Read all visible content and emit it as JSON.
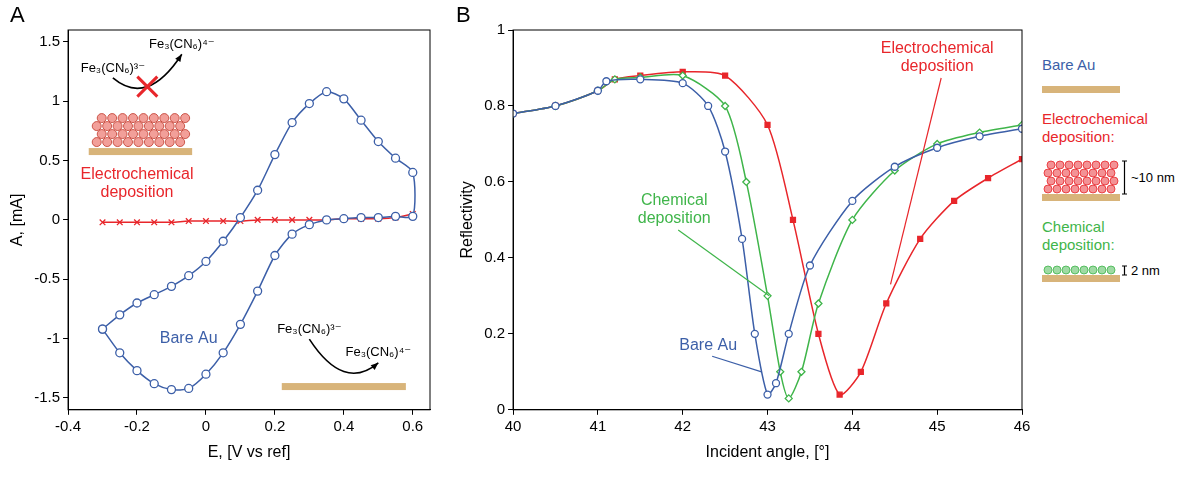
{
  "chart_data": [
    {
      "type": "line",
      "panel_label": "A",
      "x_label": "E, [V vs ref]",
      "y_label": "A, [mA]",
      "xlim": [
        -0.4,
        0.65
      ],
      "xticks": [
        -0.4,
        -0.2,
        0,
        0.2,
        0.4,
        0.6
      ],
      "ylim": [
        -1.6,
        1.6
      ],
      "yticks": [
        -1.5,
        -1,
        -0.5,
        0,
        0.5,
        1,
        1.5
      ],
      "grid": false,
      "series": [
        {
          "name": "Bare Au",
          "color": "#3c5fa8",
          "marker": "circle",
          "line_style": "solid",
          "x": [
            -0.3,
            -0.25,
            -0.2,
            -0.15,
            -0.1,
            -0.05,
            0,
            0.05,
            0.1,
            0.15,
            0.2,
            0.25,
            0.3,
            0.35,
            0.4,
            0.45,
            0.5,
            0.55,
            0.6,
            0.6,
            0.55,
            0.5,
            0.45,
            0.4,
            0.35,
            0.3,
            0.25,
            0.2,
            0.15,
            0.1,
            0.05,
            0,
            -0.05,
            -0.1,
            -0.15,
            -0.2,
            -0.25,
            -0.3
          ],
          "values": [
            -0.92,
            -1.12,
            -1.27,
            -1.38,
            -1.43,
            -1.42,
            -1.3,
            -1.12,
            -0.88,
            -0.6,
            -0.3,
            -0.12,
            -0.04,
            0,
            0.01,
            0.02,
            0.02,
            0.03,
            0.03,
            0.4,
            0.52,
            0.66,
            0.84,
            1.02,
            1.08,
            0.98,
            0.82,
            0.55,
            0.25,
            0.02,
            -0.18,
            -0.35,
            -0.47,
            -0.56,
            -0.63,
            -0.7,
            -0.8,
            -0.92
          ]
        },
        {
          "name": "Electrochemical deposition",
          "color": "#e8262b",
          "marker": "cross",
          "line_style": "solid",
          "x": [
            -0.3,
            -0.25,
            -0.2,
            -0.15,
            -0.1,
            -0.05,
            0,
            0.05,
            0.1,
            0.15,
            0.2,
            0.25,
            0.3,
            0.35,
            0.4,
            0.45,
            0.5,
            0.55,
            0.6
          ],
          "values": [
            -0.02,
            -0.02,
            -0.02,
            -0.02,
            -0.02,
            -0.01,
            -0.01,
            -0.01,
            -0.01,
            0,
            0,
            0,
            0,
            0,
            0.01,
            0.01,
            0.01,
            0.02,
            0.05
          ]
        }
      ],
      "insets": [
        {
          "reactant": "Fe₃(CN₆)³⁻",
          "product": "Fe₃(CN₆)⁴⁻"
        },
        {
          "reactant": "Fe₃(CN₆)³⁻",
          "product": "Fe₃(CN₆)⁴⁻"
        }
      ]
    },
    {
      "type": "line",
      "panel_label": "B",
      "x_label": "Incident angle, [°]",
      "y_label": "Reflectivity",
      "xlim": [
        40,
        46
      ],
      "xticks": [
        40,
        41,
        42,
        43,
        44,
        45,
        46
      ],
      "ylim": [
        0,
        1
      ],
      "yticks": [
        0,
        0.2,
        0.4,
        0.6,
        0.8,
        1
      ],
      "grid": false,
      "series": [
        {
          "name": "Bare Au",
          "color": "#3c5fa8",
          "marker": "circle",
          "line_style": "solid",
          "x": [
            40,
            40.5,
            41,
            41.1,
            41.5,
            42,
            42.3,
            42.5,
            42.7,
            42.85,
            43,
            43.1,
            43.25,
            43.5,
            44,
            44.5,
            45,
            45.5,
            46
          ],
          "values": [
            0.78,
            0.8,
            0.84,
            0.865,
            0.87,
            0.86,
            0.8,
            0.68,
            0.45,
            0.2,
            0.04,
            0.07,
            0.2,
            0.38,
            0.55,
            0.64,
            0.69,
            0.72,
            0.74
          ]
        },
        {
          "name": "Chemical deposition",
          "color": "#3fb54a",
          "marker": "diamond",
          "line_style": "solid",
          "x": [
            40,
            40.5,
            41,
            41.2,
            41.5,
            42,
            42.5,
            42.75,
            43,
            43.15,
            43.25,
            43.4,
            43.6,
            44,
            44.5,
            45,
            45.5,
            46
          ],
          "values": [
            0.78,
            0.8,
            0.84,
            0.87,
            0.875,
            0.88,
            0.8,
            0.6,
            0.3,
            0.1,
            0.03,
            0.1,
            0.28,
            0.5,
            0.63,
            0.7,
            0.73,
            0.75
          ]
        },
        {
          "name": "Electrochemical deposition",
          "color": "#e8262b",
          "marker": "square",
          "line_style": "solid",
          "x": [
            40,
            40.5,
            41,
            41.2,
            41.5,
            42,
            42.5,
            43,
            43.3,
            43.6,
            43.85,
            44.1,
            44.4,
            44.8,
            45.2,
            45.6,
            46
          ],
          "values": [
            0.78,
            0.8,
            0.84,
            0.87,
            0.88,
            0.89,
            0.88,
            0.75,
            0.5,
            0.2,
            0.04,
            0.1,
            0.28,
            0.45,
            0.55,
            0.61,
            0.66
          ]
        }
      ],
      "side_labels": [
        {
          "text": "Bare Au",
          "color": "#3c5fa8"
        },
        {
          "text": "Electrochemical deposition:",
          "color": "#e8262b",
          "thickness": "~10 nm"
        },
        {
          "text": "Chemical deposition:",
          "color": "#3fb54a",
          "thickness": "2 nm"
        }
      ]
    }
  ]
}
